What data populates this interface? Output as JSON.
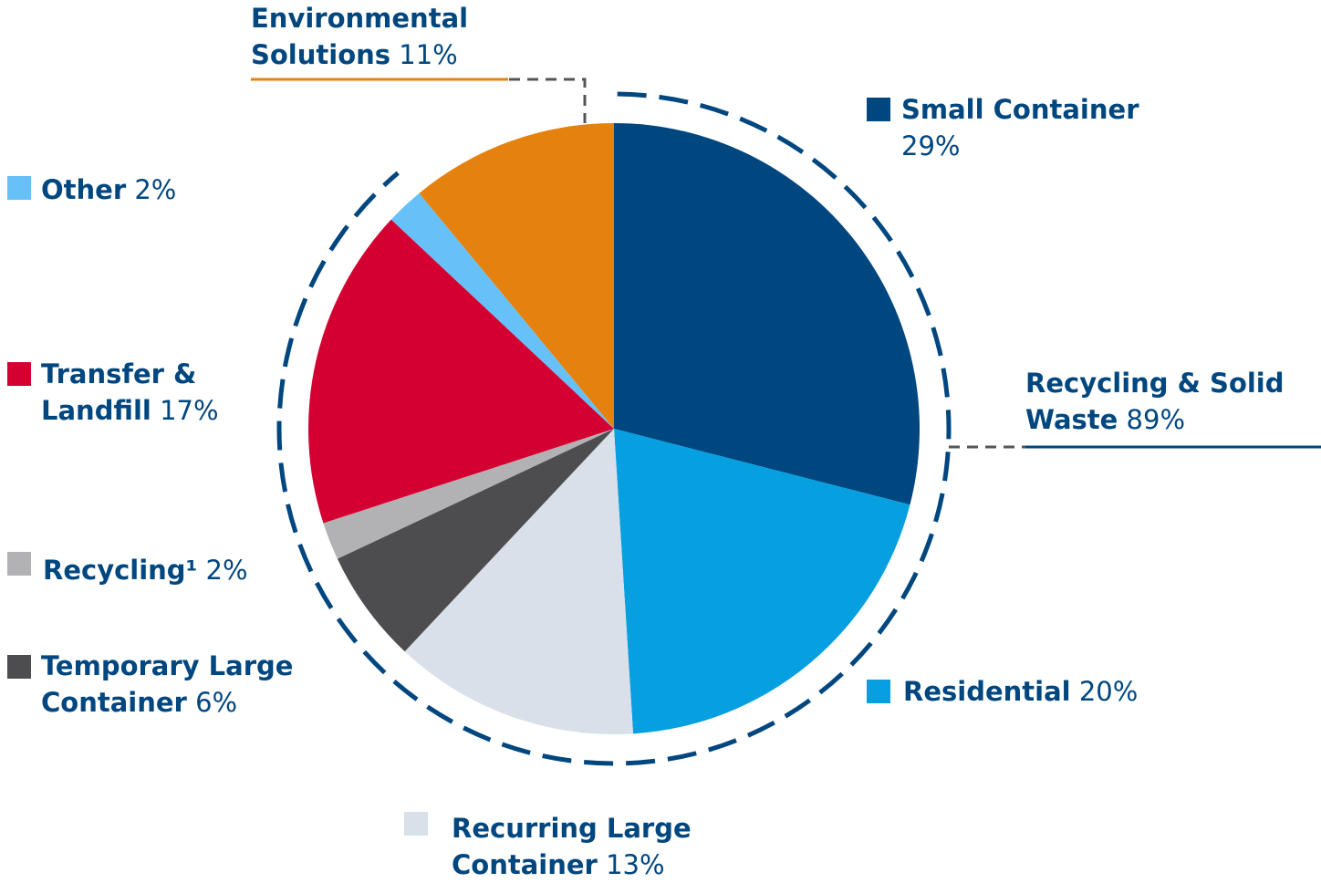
{
  "chart_data": {
    "type": "pie",
    "categories": [
      "Small Container",
      "Residential",
      "Recurring Large Container",
      "Temporary Large Container",
      "Recycling¹",
      "Transfer & Landfill",
      "Other",
      "Environmental Solutions"
    ],
    "values": [
      29,
      20,
      13,
      6,
      2,
      17,
      2,
      11
    ],
    "value_labels": [
      "29%",
      "20%",
      "13%",
      "6%",
      "2%",
      "17%",
      "2%",
      "11%"
    ],
    "colors": [
      "#00467f",
      "#069fe0",
      "#d9e0ea",
      "#4d4d4f",
      "#b2b2b4",
      "#d50032",
      "#66c1f9",
      "#e5820f"
    ],
    "groups": [
      {
        "name": "Recycling & Solid Waste",
        "value": 89,
        "value_label": "89%"
      }
    ]
  }
}
